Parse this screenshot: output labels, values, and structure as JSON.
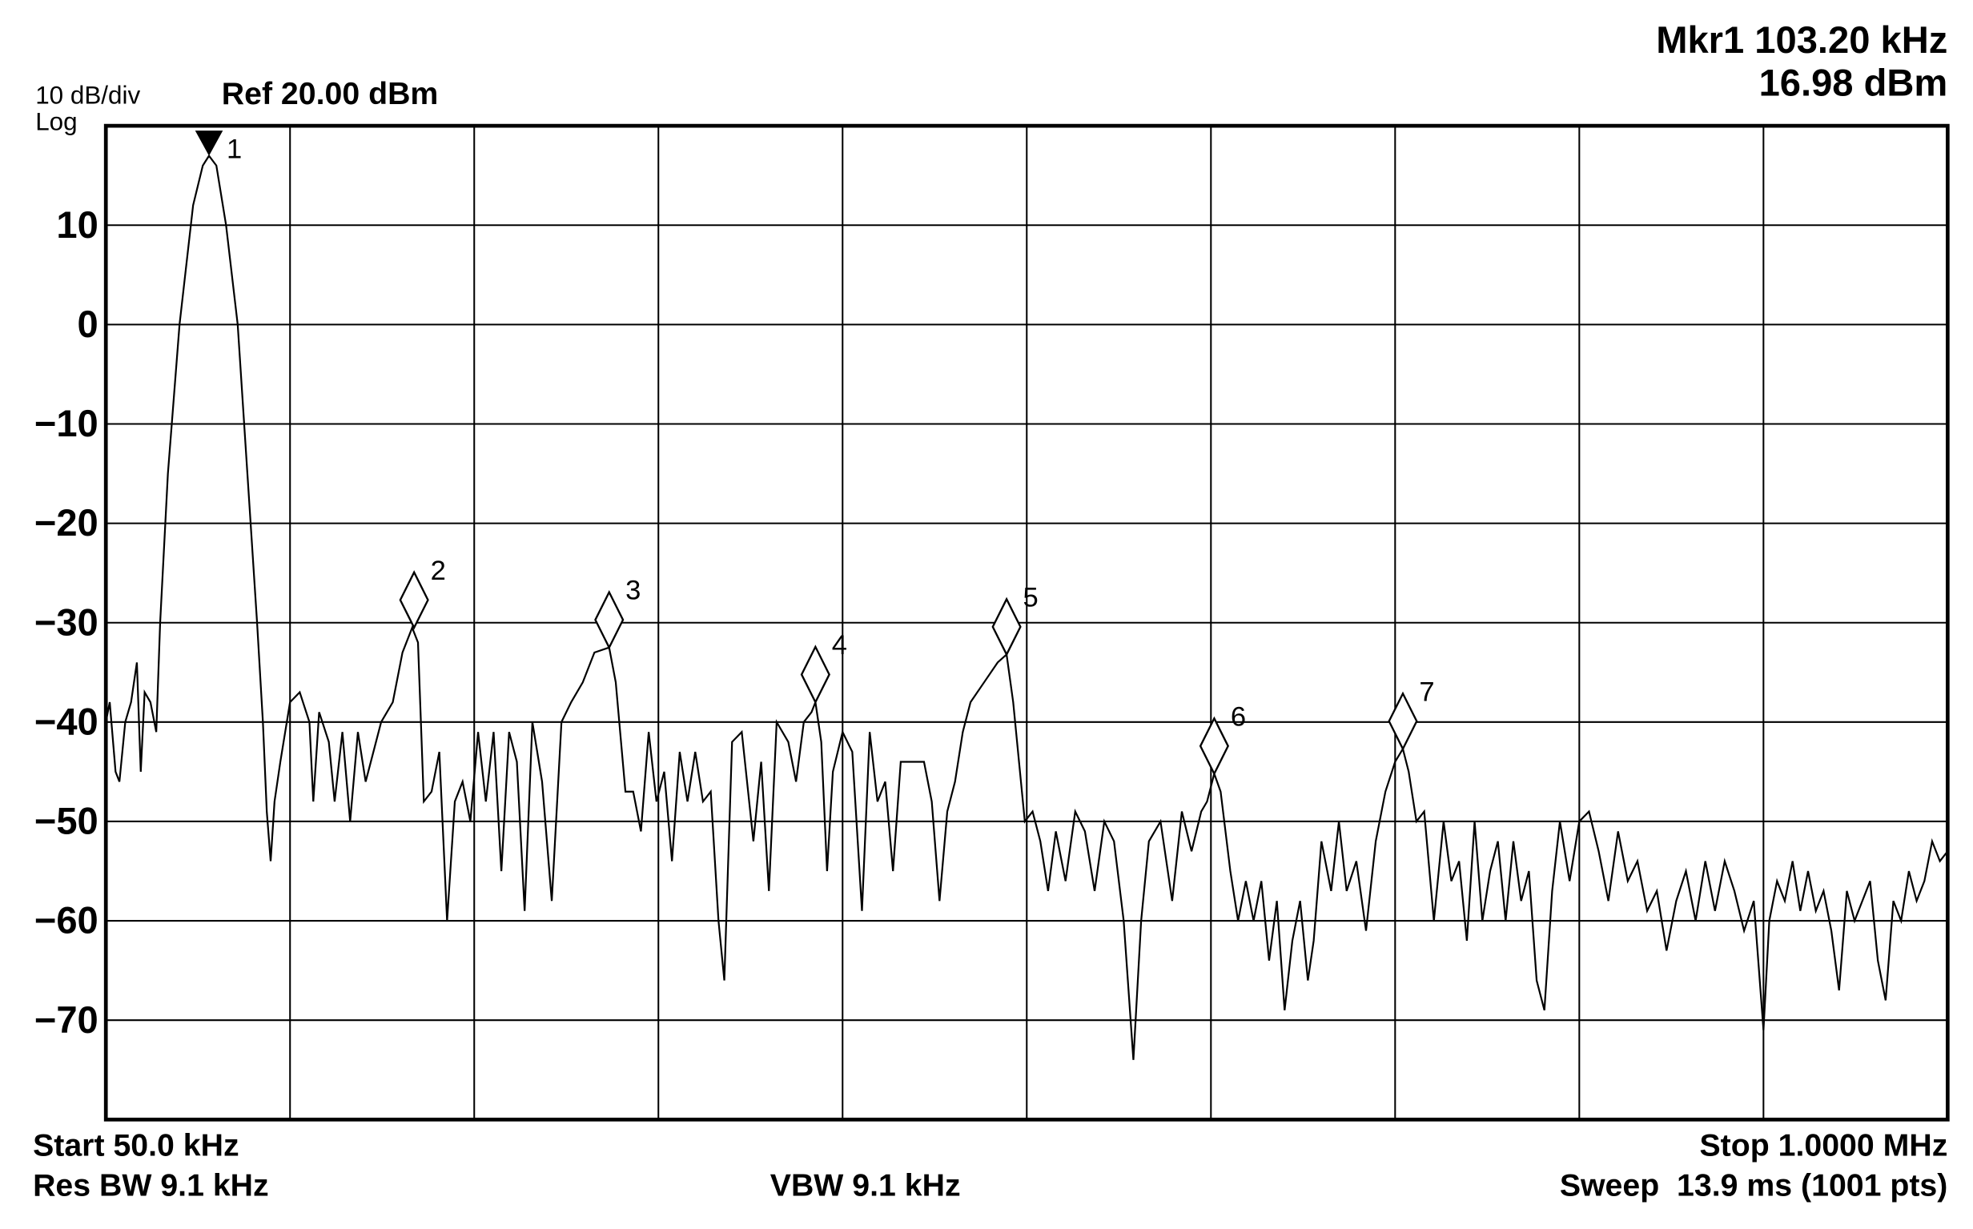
{
  "chart_data": {
    "type": "line",
    "scale_label": "10 dB/div",
    "scale_type": "Log",
    "ref_label": "Ref 20.00 dBm",
    "marker_readout": [
      "Mkr1 103.20 kHz",
      "16.98 dBm"
    ],
    "start_label": "Start 50.0 kHz",
    "stop_label": "Stop 1.0000 MHz",
    "rbw_label": "Res BW 9.1 kHz",
    "vbw_label": "VBW 9.1 kHz",
    "sweep_label": "Sweep  13.9 ms (1001 pts)",
    "xlim": [
      50,
      1000
    ],
    "ylim": [
      -80,
      20
    ],
    "yticks": [
      {
        "value": 10,
        "label": "10"
      },
      {
        "value": 0,
        "label": "0"
      },
      {
        "value": -10,
        "label": "−10"
      },
      {
        "value": -20,
        "label": "−20"
      },
      {
        "value": -30,
        "label": "−30"
      },
      {
        "value": -40,
        "label": "−40"
      },
      {
        "value": -50,
        "label": "−50"
      },
      {
        "value": -60,
        "label": "−60"
      },
      {
        "value": -70,
        "label": "−70"
      }
    ],
    "grid": true,
    "color": "#000000",
    "x": [
      50,
      52,
      55,
      57,
      60,
      63,
      66,
      68,
      70,
      73,
      76,
      78,
      82,
      88,
      95,
      100,
      103.2,
      107,
      112,
      118,
      123,
      128,
      131,
      133,
      135,
      137,
      140,
      145,
      150,
      155,
      157,
      160,
      165,
      168,
      172,
      176,
      180,
      184,
      188,
      192,
      198,
      203,
      208,
      211,
      214,
      218,
      222,
      226,
      230,
      234,
      238,
      242,
      246,
      250,
      254,
      258,
      262,
      266,
      270,
      275,
      280,
      285,
      290,
      296,
      302,
      309.6,
      313,
      318,
      322,
      326,
      330,
      334,
      338,
      342,
      346,
      350,
      354,
      358,
      362,
      366,
      369,
      373,
      378,
      384,
      388,
      392,
      396,
      402,
      406,
      410,
      414,
      416,
      419,
      422,
      425,
      430,
      435,
      440,
      444,
      448,
      452,
      456,
      460,
      465,
      472,
      476,
      480,
      484,
      488,
      492,
      496,
      503,
      510,
      514.6,
      518,
      521,
      524,
      528,
      532,
      536,
      540,
      545,
      550,
      555,
      560,
      565,
      570,
      575,
      580,
      584,
      588,
      594,
      600,
      605,
      610,
      615,
      618,
      621.7,
      625,
      630,
      634,
      638,
      642,
      646,
      650,
      654,
      658,
      662,
      666,
      670,
      673,
      677,
      682,
      686,
      690,
      695,
      700,
      705,
      710,
      715,
      719,
      722,
      726,
      730,
      735,
      740,
      744,
      748,
      752,
      756,
      760,
      764,
      768,
      772,
      776,
      780,
      784,
      788,
      792,
      796,
      800,
      805,
      810,
      815,
      820,
      825,
      830,
      835,
      840,
      845,
      850,
      855,
      860,
      865,
      870,
      875,
      880,
      885,
      890,
      895,
      900,
      905,
      908,
      912,
      916,
      920,
      924,
      928,
      932,
      936,
      940,
      944,
      948,
      952,
      956,
      960,
      964,
      968,
      972,
      976,
      980,
      984,
      988,
      992,
      996,
      1000
    ],
    "values": [
      -40,
      -38,
      -45,
      -46,
      -40,
      -38,
      -34,
      -45,
      -37,
      -38,
      -41,
      -30,
      -15,
      0,
      12,
      16,
      16.98,
      16,
      10,
      0,
      -15,
      -30,
      -40,
      -49,
      -54,
      -48,
      -44,
      -38,
      -37,
      -40,
      -48,
      -39,
      -42,
      -48,
      -41,
      -50,
      -41,
      -46,
      -43,
      -40,
      -38,
      -33,
      -30.5,
      -32,
      -48,
      -47,
      -43,
      -60,
      -48,
      -46,
      -50,
      -41,
      -48,
      -41,
      -55,
      -41,
      -44,
      -59,
      -40,
      -46,
      -58,
      -40,
      -38,
      -36,
      -33,
      -32.5,
      -36,
      -47,
      -47,
      -51,
      -41,
      -48,
      -45,
      -54,
      -43,
      -48,
      -43,
      -48,
      -47,
      -60,
      -66,
      -42,
      -41,
      -52,
      -44,
      -57,
      -40,
      -42,
      -46,
      -40,
      -39,
      -38,
      -42,
      -55,
      -45,
      -41,
      -43,
      -59,
      -41,
      -48,
      -46,
      -55,
      -44,
      -44,
      -44,
      -48,
      -58,
      -49,
      -46,
      -41,
      -38,
      -36,
      -34,
      -33.2,
      -38,
      -44,
      -50,
      -49,
      -52,
      -57,
      -51,
      -56,
      -49,
      -51,
      -57,
      -50,
      -52,
      -60,
      -74,
      -60,
      -52,
      -50,
      -58,
      -49,
      -53,
      -49,
      -48,
      -45.2,
      -47,
      -55,
      -60,
      -56,
      -60,
      -56,
      -64,
      -58,
      -69,
      -62,
      -58,
      -66,
      -62,
      -52,
      -57,
      -50,
      -57,
      -54,
      -61,
      -52,
      -47,
      -44,
      -42.7,
      -45,
      -50,
      -49,
      -60,
      -50,
      -56,
      -54,
      -62,
      -50,
      -60,
      -55,
      -52,
      -60,
      -52,
      -58,
      -55,
      -66,
      -69,
      -57,
      -50,
      -56,
      -50,
      -49,
      -53,
      -58,
      -51,
      -56,
      -54,
      -59,
      -57,
      -63,
      -58,
      -55,
      -60,
      -54,
      -59,
      -54,
      -57,
      -61,
      -58,
      -71,
      -60,
      -56,
      -58,
      -54,
      -59,
      -55,
      -59,
      -57,
      -61,
      -67,
      -57,
      -60,
      -58,
      -56,
      -64,
      -68,
      -58,
      -60,
      -55,
      -58,
      -56,
      -52,
      -54,
      -53
    ],
    "markers": [
      {
        "label": "1",
        "x": 103.2,
        "y": 16.98
      },
      {
        "label": "2",
        "x": 209,
        "y": -30.5
      },
      {
        "label": "3",
        "x": 309.6,
        "y": -32.5
      },
      {
        "label": "4",
        "x": 416,
        "y": -38
      },
      {
        "label": "5",
        "x": 514.6,
        "y": -33.2
      },
      {
        "label": "6",
        "x": 621.7,
        "y": -45.2
      },
      {
        "label": "7",
        "x": 719,
        "y": -42.7
      }
    ]
  }
}
